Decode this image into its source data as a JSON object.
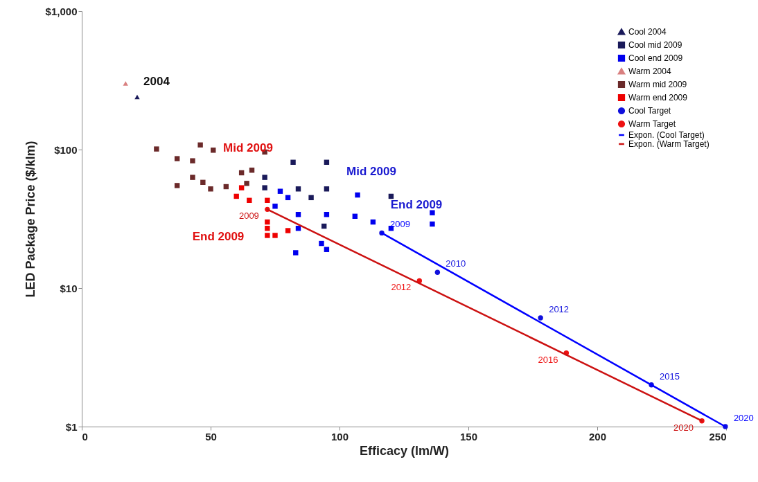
{
  "chart_data": {
    "type": "scatter",
    "xlabel": "Efficacy (lm/W)",
    "ylabel": "LED Package Price ($/klm)",
    "log": "y",
    "legend": "top right",
    "grid": false,
    "xlim": [
      0,
      250
    ],
    "xticks": [
      0,
      50,
      100,
      150,
      200,
      250
    ],
    "ylim": [
      1,
      1000
    ],
    "yticks": [
      {
        "value": 1,
        "label": "$1"
      },
      {
        "value": 10,
        "label": "$10"
      },
      {
        "value": 100,
        "label": "$100"
      },
      {
        "value": 1000,
        "label": "$1,000"
      }
    ],
    "series": [
      {
        "name": "Cool 2004",
        "color": "#1a1a5a",
        "marker": "triangle",
        "x": [
          21.5
        ],
        "values": [
          240
        ]
      },
      {
        "name": "Cool mid 2009",
        "color": "#1a1a5a",
        "marker": "square",
        "x": [
          82,
          95,
          71,
          71,
          84,
          89,
          95,
          94,
          120
        ],
        "values": [
          81,
          81,
          63,
          53,
          52,
          45,
          52,
          28,
          46
        ]
      },
      {
        "name": "Cool end 2009",
        "color": "#0000ee",
        "marker": "square",
        "x": [
          107,
          84,
          95,
          106,
          113,
          120,
          136,
          136,
          84,
          93,
          95,
          83,
          77,
          80,
          75
        ],
        "values": [
          47,
          34,
          34,
          33,
          30,
          27,
          35,
          29,
          27,
          21,
          19,
          18,
          50,
          45,
          39
        ]
      },
      {
        "name": "Warm 2004",
        "color": "#d98080",
        "marker": "triangle",
        "x": [
          17
        ],
        "values": [
          300
        ]
      },
      {
        "name": "Warm mid 2009",
        "color": "#6b2a2a",
        "marker": "square",
        "x": [
          29,
          46,
          51,
          37,
          43,
          66,
          62,
          64,
          37,
          43,
          47,
          50,
          56,
          71
        ],
        "values": [
          101,
          108,
          99,
          86,
          83,
          71,
          68,
          57,
          55,
          63,
          58,
          52,
          54,
          96
        ]
      },
      {
        "name": "Warm end 2009",
        "color": "#ee0000",
        "marker": "square",
        "x": [
          62,
          60,
          65,
          72,
          72,
          72,
          72,
          75,
          80
        ],
        "values": [
          53,
          46,
          43,
          43,
          27,
          30,
          24,
          24,
          26
        ]
      },
      {
        "name": "Cool Target",
        "color": "#1010dd",
        "marker": "circle",
        "x": [
          116.4,
          138,
          178,
          221,
          249.7
        ],
        "values": [
          25,
          13,
          6.1,
          2.0,
          1.0
        ]
      },
      {
        "name": "Warm Target",
        "color": "#ee1111",
        "marker": "circle",
        "x": [
          72,
          131,
          188,
          240.6
        ],
        "values": [
          37,
          11.3,
          3.4,
          1.1
        ]
      },
      {
        "name": "Expon. (Cool Target)",
        "type": "line",
        "color": "#0000ff",
        "x": [
          116.4,
          249.7
        ],
        "values": [
          25,
          1.0
        ]
      },
      {
        "name": "Expon. (Warm Target)",
        "type": "line",
        "color": "#cc1111",
        "x": [
          72,
          240.6
        ],
        "values": [
          37,
          1.1
        ]
      }
    ],
    "annotations": [
      "2004",
      "Mid 2009",
      "End 2009",
      "Mid 2009",
      "End 2009",
      {
        "text": "2009",
        "x": 116.4,
        "y": 25
      },
      {
        "text": "2010",
        "x": 138,
        "y": 13
      },
      {
        "text": "2012",
        "x": 178,
        "y": 6.1
      },
      {
        "text": "2015",
        "x": 221,
        "y": 2.0
      },
      {
        "text": "2020",
        "x": 249.7,
        "y": 1.0
      },
      {
        "text": "2009",
        "x": 72,
        "y": 37
      },
      {
        "text": "2012",
        "x": 131,
        "y": 11.3
      },
      {
        "text": "2016",
        "x": 188,
        "y": 3.4
      },
      {
        "text": "2020",
        "x": 240.6,
        "y": 1.1
      }
    ]
  }
}
